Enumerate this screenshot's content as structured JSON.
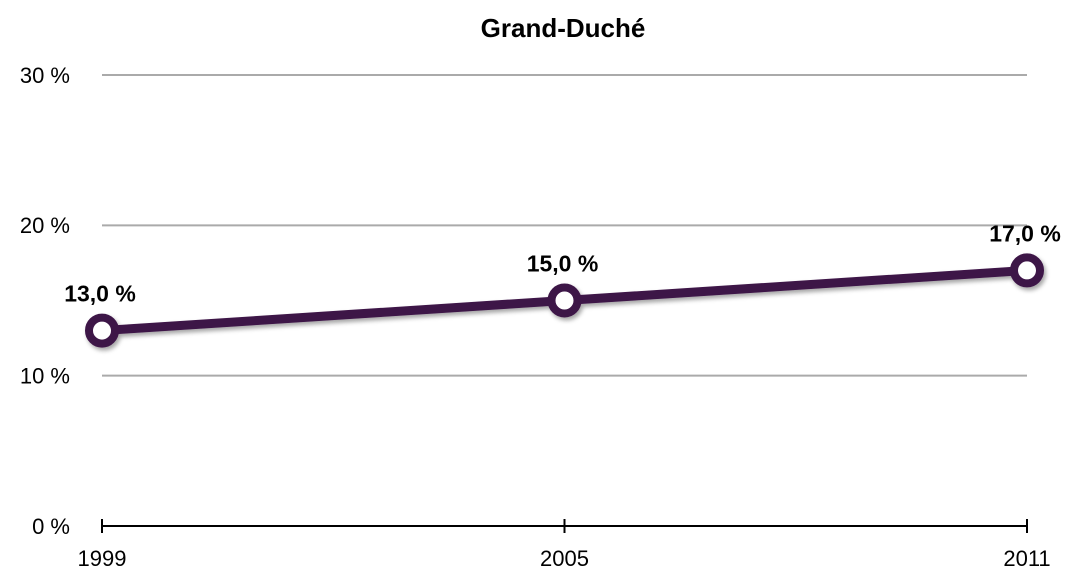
{
  "chart_data": {
    "type": "line",
    "title": "Grand-Duché",
    "categories": [
      "1999",
      "2005",
      "2011"
    ],
    "series": [
      {
        "name": "Grand-Duché",
        "color": "#3d1347",
        "values": [
          13,
          15,
          17
        ],
        "value_labels": [
          "13,0 %",
          "15,0 %",
          "17,0 %"
        ]
      }
    ],
    "ylim": [
      0,
      30
    ],
    "yticks": [
      {
        "value": 0,
        "label": "0 %"
      },
      {
        "value": 10,
        "label": "10 %"
      },
      {
        "value": 20,
        "label": "20 %"
      },
      {
        "value": 30,
        "label": "30 %"
      }
    ],
    "grid": true
  }
}
